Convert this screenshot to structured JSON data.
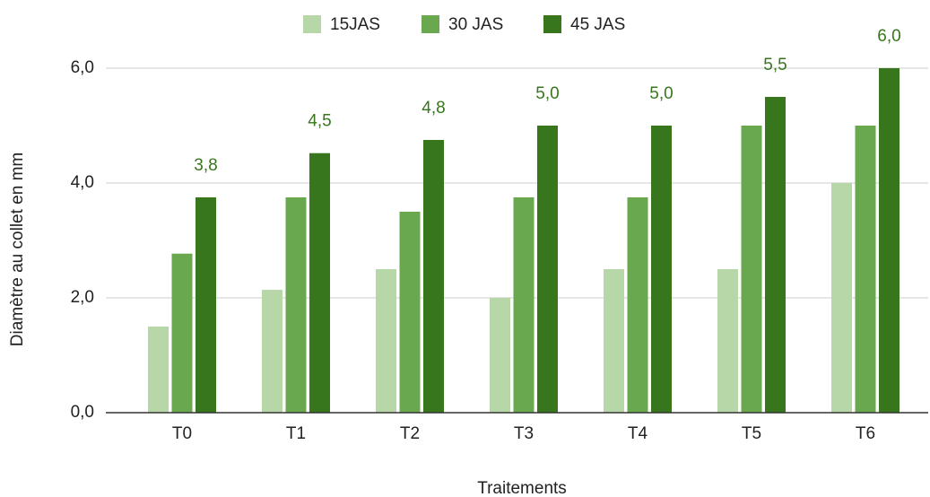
{
  "chart_data": {
    "type": "bar",
    "x_label": "Traitements",
    "y_label": "Diamètre au collet en mm",
    "categories": [
      "T0",
      "T1",
      "T2",
      "T3",
      "T4",
      "T5",
      "T6"
    ],
    "series": [
      {
        "name": "15JAS",
        "color": "#b7d7a8",
        "values": [
          1.5,
          2.14,
          2.5,
          2.0,
          2.5,
          2.5,
          4.0
        ]
      },
      {
        "name": "30 JAS",
        "color": "#6aa84f",
        "values": [
          2.77,
          3.75,
          3.5,
          3.75,
          3.75,
          5.0,
          5.0
        ]
      },
      {
        "name": "45 JAS",
        "color": "#38761d",
        "values": [
          3.75,
          4.52,
          4.75,
          5.0,
          5.0,
          5.5,
          6.0
        ],
        "value_labels": [
          "3,8",
          "4,5",
          "4,8",
          "5,0",
          "5,0",
          "5,5",
          "6,0"
        ]
      }
    ],
    "ylim": [
      0,
      6
    ],
    "yticks": [
      {
        "value": 0,
        "label": "0,0"
      },
      {
        "value": 2,
        "label": "2,0"
      },
      {
        "value": 4,
        "label": "4,0"
      },
      {
        "value": 6,
        "label": "6,0"
      }
    ],
    "grid": true,
    "legend": "top"
  }
}
